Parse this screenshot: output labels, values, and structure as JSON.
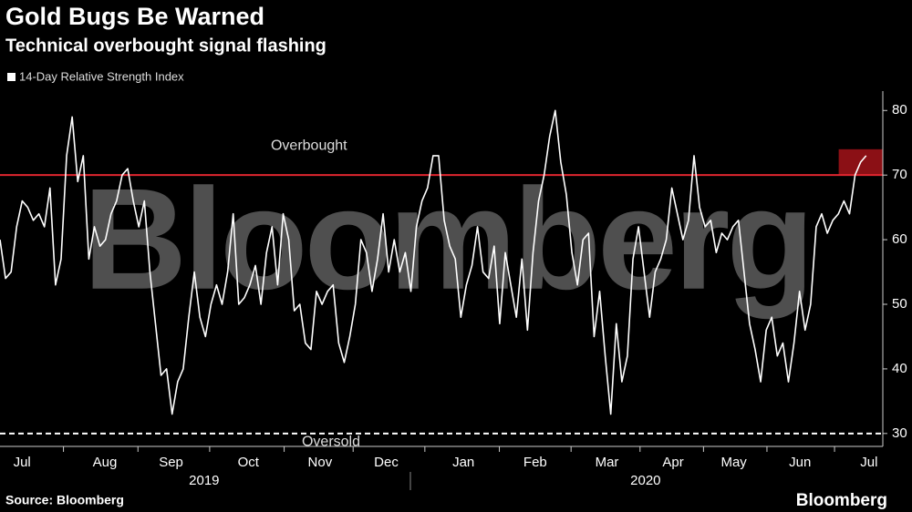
{
  "chart_data": {
    "type": "line",
    "title": "Gold Bugs Be Warned",
    "subtitle": "Technical overbought signal flashing",
    "source": "Source: Bloomberg",
    "logo": "Bloomberg",
    "watermark": "Bloomberg",
    "background": "#000000",
    "series": [
      {
        "name": "14-Day Relative Strength Index",
        "color": "#ffffff",
        "values": [
          60,
          54,
          55,
          62,
          66,
          65,
          63,
          64,
          62,
          68,
          53,
          57,
          73,
          79,
          69,
          73,
          57,
          62,
          59,
          60,
          64,
          66,
          70,
          71,
          66,
          62,
          66,
          55,
          47,
          39,
          40,
          33,
          38,
          40,
          48,
          55,
          48,
          45,
          50,
          53,
          50,
          55,
          64,
          50,
          51,
          53,
          56,
          50,
          58,
          62,
          53,
          64,
          60,
          49,
          50,
          44,
          43,
          52,
          50,
          52,
          53,
          44,
          41,
          45,
          50,
          60,
          58,
          52,
          57,
          64,
          55,
          60,
          55,
          58,
          52,
          62,
          66,
          68,
          73,
          73,
          63,
          59,
          57,
          48,
          53,
          56,
          62,
          55,
          54,
          59,
          47,
          58,
          53,
          48,
          57,
          46,
          58,
          66,
          70,
          76,
          80,
          72,
          67,
          58,
          53,
          60,
          61,
          45,
          52,
          42,
          33,
          47,
          38,
          42,
          57,
          62,
          55,
          48,
          55,
          57,
          60,
          68,
          64,
          60,
          63,
          73,
          65,
          62,
          63,
          58,
          61,
          60,
          62,
          63,
          55,
          47,
          43,
          38,
          46,
          48,
          42,
          44,
          38,
          44,
          52,
          46,
          50,
          62,
          64,
          61,
          63,
          64,
          66,
          64,
          70,
          72,
          73
        ]
      }
    ],
    "xlim": [
      0,
      160
    ],
    "xticks": [
      {
        "value": 4,
        "label": "Jul"
      },
      {
        "value": 19,
        "label": "Aug"
      },
      {
        "value": 31,
        "label": "Sep"
      },
      {
        "value": 45,
        "label": "Oct"
      },
      {
        "value": 58,
        "label": "Nov"
      },
      {
        "value": 70,
        "label": "Dec"
      },
      {
        "value": 84,
        "label": "Jan"
      },
      {
        "value": 97,
        "label": "Feb"
      },
      {
        "value": 110,
        "label": "Mar"
      },
      {
        "value": 122,
        "label": "Apr"
      },
      {
        "value": 133,
        "label": "May"
      },
      {
        "value": 145,
        "label": "Jun"
      },
      {
        "value": 157.5,
        "label": "Jul"
      }
    ],
    "years": [
      {
        "value": 37,
        "label": "2019"
      },
      {
        "value": 117,
        "label": "2020"
      }
    ],
    "ylim": [
      28,
      83
    ],
    "yticks": [
      30,
      40,
      50,
      60,
      70,
      80
    ],
    "reference_lines": [
      {
        "value": 70,
        "color": "#e0262f",
        "style": "solid"
      },
      {
        "value": 30,
        "color": "#ffffff",
        "style": "dashed"
      }
    ],
    "highlight": {
      "x": [
        152,
        160
      ],
      "y": [
        70,
        74
      ],
      "color": "#8b1015"
    },
    "annotations": [
      {
        "text": "Overbought",
        "x": 56,
        "y": 74.5
      },
      {
        "text": "Oversold",
        "x": 60,
        "y": 28.7
      }
    ]
  }
}
